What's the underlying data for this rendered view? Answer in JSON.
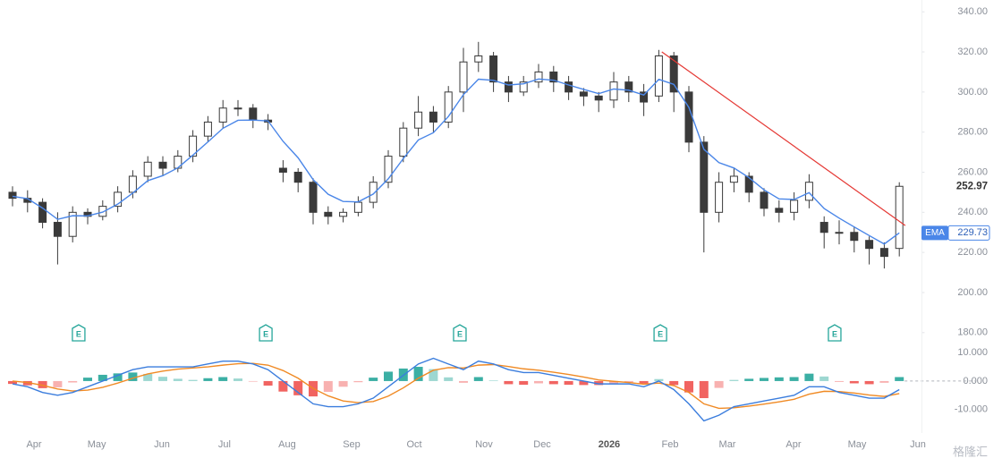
{
  "chart_data": {
    "type": "candlestick",
    "xlim": [
      -0.6,
      60.5
    ],
    "xticks": [
      {
        "value": 1.43,
        "label": "Apr"
      },
      {
        "value": 5.6,
        "label": "May"
      },
      {
        "value": 9.94,
        "label": "Jun"
      },
      {
        "value": 14.1,
        "label": "Jul"
      },
      {
        "value": 18.27,
        "label": "Aug"
      },
      {
        "value": 22.56,
        "label": "Sep"
      },
      {
        "value": 26.73,
        "label": "Oct"
      },
      {
        "value": 31.37,
        "label": "Nov"
      },
      {
        "value": 35.24,
        "label": "Dec"
      },
      {
        "value": 39.7,
        "label": "2026"
      },
      {
        "value": 43.75,
        "label": "Feb"
      },
      {
        "value": 47.56,
        "label": "Mar"
      },
      {
        "value": 51.96,
        "label": "Apr"
      },
      {
        "value": 56.19,
        "label": "May"
      },
      {
        "value": 60.24,
        "label": "Jun"
      }
    ],
    "ylim": [
      175,
      345
    ],
    "yticks": [
      {
        "value": 180,
        "label": "180.00"
      },
      {
        "value": 200,
        "label": "200.00"
      },
      {
        "value": 220,
        "label": "220.00"
      },
      {
        "value": 240,
        "label": "240.00"
      },
      {
        "value": 260,
        "label": "260.00"
      },
      {
        "value": 280,
        "label": "280.00"
      },
      {
        "value": 300,
        "label": "300.00"
      },
      {
        "value": 320,
        "label": "320.00"
      },
      {
        "value": 340,
        "label": "340.00"
      }
    ],
    "open": [
      250,
      247,
      245,
      235,
      228,
      240,
      238,
      243,
      250,
      258,
      265,
      262,
      268,
      278,
      285,
      292,
      292,
      286,
      262,
      260,
      255,
      240,
      238,
      240,
      245,
      255,
      268,
      282,
      290,
      285,
      300,
      315,
      318,
      305,
      300,
      305,
      310,
      305,
      300,
      298,
      296,
      305,
      300,
      298,
      318,
      300,
      275,
      240,
      255,
      258,
      250,
      242,
      240,
      246,
      235,
      230,
      230,
      226,
      222,
      222
    ],
    "high": [
      253,
      251,
      247,
      240,
      243,
      242,
      246,
      253,
      261,
      268,
      268,
      271,
      281,
      288,
      296,
      296,
      294,
      289,
      266,
      262,
      257,
      243,
      242,
      248,
      258,
      271,
      285,
      298,
      293,
      303,
      322,
      325,
      320,
      308,
      308,
      314,
      313,
      308,
      302,
      300,
      310,
      308,
      304,
      321,
      320,
      303,
      278,
      260,
      262,
      260,
      252,
      246,
      250,
      259,
      238,
      236,
      233,
      228,
      225,
      255
    ],
    "low": [
      243,
      240,
      232,
      214,
      225,
      234,
      236,
      240,
      247,
      255,
      258,
      260,
      265,
      275,
      282,
      288,
      282,
      281,
      255,
      250,
      234,
      234,
      235,
      238,
      242,
      252,
      265,
      278,
      280,
      282,
      290,
      310,
      300,
      295,
      298,
      302,
      300,
      296,
      293,
      290,
      292,
      295,
      288,
      295,
      290,
      270,
      220,
      235,
      250,
      245,
      238,
      235,
      236,
      242,
      222,
      224,
      220,
      214,
      212,
      218
    ],
    "close": [
      247,
      245,
      235,
      228,
      240,
      238,
      243,
      250,
      258,
      265,
      262,
      268,
      278,
      285,
      292,
      292,
      286,
      285,
      260,
      255,
      240,
      238,
      240,
      245,
      255,
      268,
      282,
      290,
      285,
      300,
      315,
      318,
      305,
      300,
      305,
      310,
      305,
      300,
      298,
      296,
      305,
      300,
      295,
      318,
      300,
      275,
      240,
      255,
      258,
      250,
      242,
      240,
      246,
      255,
      230,
      230,
      226,
      222,
      218,
      252.97
    ],
    "up_color": "#ffffff",
    "down_color": "#3a3a3a",
    "ema": {
      "name": "EMA",
      "color": "#4a86e8",
      "values": [
        248,
        246.8,
        242.1,
        236.5,
        238.3,
        238.2,
        240.1,
        244.1,
        249.6,
        255.8,
        258.3,
        262.2,
        268.5,
        275.1,
        281.9,
        285.9,
        286,
        285.6,
        275.4,
        267.2,
        256.3,
        249,
        245.4,
        245.2,
        249.1,
        256.7,
        266.8,
        276.1,
        279.7,
        287.8,
        298.7,
        306.4,
        305.8,
        303.5,
        304.1,
        306.5,
        305.9,
        303.5,
        301.3,
        299.2,
        301.5,
        300.9,
        298.5,
        306.3,
        303.8,
        292.3,
        271.4,
        264.8,
        262.1,
        257.3,
        251.2,
        246.7,
        246.4,
        249.8,
        241.9,
        237.1,
        232.7,
        228.4,
        224.2,
        229.73
      ]
    },
    "trendline": {
      "color": "#e53935",
      "x": [
        43.2,
        59.4
      ],
      "y": [
        320,
        233.4
      ]
    },
    "events": [
      {
        "x": 4.4,
        "label": "E"
      },
      {
        "x": 16.85,
        "label": "E"
      },
      {
        "x": 29.76,
        "label": "E"
      },
      {
        "x": 43.1,
        "label": "E"
      },
      {
        "x": 54.7,
        "label": "E"
      }
    ],
    "macd": {
      "ylim": [
        -17,
        13.5
      ],
      "yticks": [
        {
          "value": -10,
          "label": "-10.000"
        },
        {
          "value": 0,
          "label": "0.000"
        },
        {
          "value": 10,
          "label": "10.000"
        }
      ],
      "macd": {
        "color": "#3b7ddd",
        "values": [
          -1,
          -2,
          -4,
          -5,
          -4,
          -2,
          0,
          2,
          4,
          5,
          5,
          5,
          5,
          6,
          7,
          7,
          6,
          4,
          0,
          -4,
          -8,
          -9,
          -9,
          -8,
          -6,
          -2,
          2,
          6,
          8,
          6,
          4,
          7,
          6,
          4,
          3,
          3,
          2,
          1,
          0,
          -1,
          -1,
          -1,
          -2,
          0,
          -3,
          -8,
          -14,
          -12,
          -9,
          -8,
          -7,
          -6,
          -5,
          -2,
          -2,
          -4,
          -5,
          -6,
          -6,
          -3
        ]
      },
      "signal": {
        "color": "#f08a24",
        "values": [
          0,
          -0.5,
          -1.5,
          -2.8,
          -3.5,
          -3.2,
          -2.2,
          -0.7,
          1,
          2.5,
          3.5,
          4.2,
          4.6,
          5,
          5.6,
          6.1,
          6.2,
          5.6,
          3.7,
          1,
          -2.6,
          -5.2,
          -7,
          -7.6,
          -7.2,
          -5.3,
          -2.4,
          1,
          3.8,
          4.7,
          4.6,
          5.6,
          5.8,
          5.1,
          4.3,
          3.8,
          3.1,
          2.3,
          1.4,
          0.4,
          -0.1,
          -0.5,
          -1.1,
          -0.7,
          -1.6,
          -4,
          -8,
          -9.6,
          -9.4,
          -8.8,
          -8.1,
          -7.3,
          -6.4,
          -4.6,
          -3.6,
          -3.7,
          -4.2,
          -4.9,
          -5.4,
          -4.4
        ]
      },
      "histogram": {
        "positive_color": "#26a69a",
        "negative_color": "#ef5350",
        "values": [
          -1,
          -1.5,
          -2.5,
          -2.2,
          -0.5,
          1.2,
          2.2,
          2.7,
          3,
          2.5,
          1.5,
          0.8,
          0.4,
          1,
          1.4,
          0.9,
          -0.2,
          -1.6,
          -3.7,
          -5,
          -5.4,
          -3.8,
          -2,
          -0.4,
          1.2,
          3.3,
          4.4,
          5,
          4.2,
          1.3,
          -0.6,
          1.4,
          0.2,
          -1.1,
          -1.3,
          -0.8,
          -1.1,
          -1.3,
          -1.4,
          -1.4,
          -0.9,
          -0.5,
          -0.9,
          0.7,
          -1.4,
          -4,
          -6,
          -2.4,
          0.4,
          0.8,
          1.1,
          1.3,
          1.4,
          2.6,
          1.6,
          -0.3,
          -0.8,
          -1.1,
          -0.6,
          1.4
        ]
      }
    }
  },
  "watermark": "格隆汇"
}
